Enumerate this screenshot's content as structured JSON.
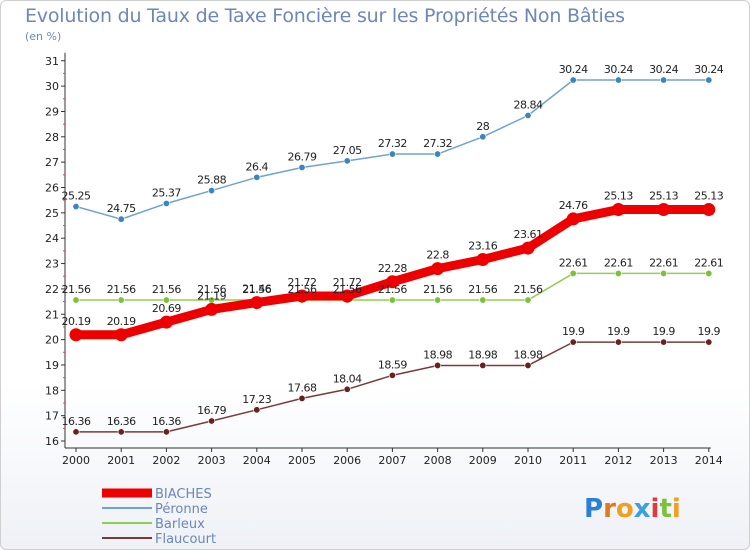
{
  "chart_data": {
    "type": "line",
    "title": "Evolution du Taux de Taxe Foncière sur les Propriétés Non Bâties",
    "unit_label": "(en %)",
    "xlabel": "",
    "ylabel": "",
    "x": [
      "2000",
      "2001",
      "2002",
      "2003",
      "2004",
      "2005",
      "2006",
      "2007",
      "2008",
      "2009",
      "2010",
      "2011",
      "2012",
      "2013",
      "2014"
    ],
    "ylim": [
      16,
      31
    ],
    "yticks": [
      16,
      17,
      18,
      19,
      20,
      21,
      22,
      23,
      24,
      25,
      26,
      27,
      28,
      29,
      30,
      31
    ],
    "grid": false,
    "legend_position": "bottom-left",
    "series": [
      {
        "name": "Péronne",
        "color": "#6ea3cf",
        "marker_color": "#3d85c0",
        "style": "thin",
        "values": [
          25.25,
          24.75,
          25.37,
          25.88,
          26.4,
          26.79,
          27.05,
          27.32,
          27.32,
          28,
          28.84,
          30.24,
          30.24,
          30.24,
          30.24
        ],
        "labels": [
          "25.25",
          "24.75",
          "25.37",
          "25.88",
          "26.4",
          "26.79",
          "27.05",
          "27.32",
          "27.32",
          "28",
          "28.84",
          "30.24",
          "30.24",
          "30.24",
          "30.24"
        ]
      },
      {
        "name": "Barleux",
        "color": "#8fd14f",
        "marker_color": "#7cc13a",
        "style": "thin",
        "values": [
          21.56,
          21.56,
          21.56,
          21.56,
          21.56,
          21.56,
          21.56,
          21.56,
          21.56,
          21.56,
          21.56,
          22.61,
          22.61,
          22.61,
          22.61
        ],
        "labels": [
          "21.56",
          "21.56",
          "21.56",
          "21.56",
          "21.56",
          "21.56",
          "21.56",
          "21.56",
          "21.56",
          "21.56",
          "21.56",
          "22.61",
          "22.61",
          "22.61",
          "22.61"
        ]
      },
      {
        "name": "Flaucourt",
        "color": "#7a3a3a",
        "marker_color": "#6b2020",
        "style": "thin",
        "values": [
          16.36,
          16.36,
          16.36,
          16.79,
          17.23,
          17.68,
          18.04,
          18.59,
          18.98,
          18.98,
          18.98,
          19.9,
          19.9,
          19.9,
          19.9
        ],
        "labels": [
          "16.36",
          "16.36",
          "16.36",
          "16.79",
          "17.23",
          "17.68",
          "18.04",
          "18.59",
          "18.98",
          "18.98",
          "18.98",
          "19.9",
          "19.9",
          "19.9",
          "19.9"
        ]
      },
      {
        "name": "BIACHES",
        "color": "#ee0000",
        "marker_color": "#ee0000",
        "style": "thick",
        "values": [
          20.19,
          20.19,
          20.69,
          21.19,
          21.46,
          21.72,
          21.72,
          22.28,
          22.8,
          23.16,
          23.61,
          24.76,
          25.13,
          25.13,
          25.13
        ],
        "labels": [
          "20.19",
          "20.19",
          "20.69",
          "21.19",
          "21.46",
          "21.72",
          "21.72",
          "22.28",
          "22.8",
          "23.16",
          "23.61",
          "24.76",
          "25.13",
          "25.13",
          "25.13"
        ]
      }
    ],
    "legend_order": [
      "BIACHES",
      "Péronne",
      "Barleux",
      "Flaucourt"
    ]
  },
  "logo": {
    "text": "Proxiti",
    "letters": [
      "P",
      "r",
      "o",
      "x",
      "i",
      "t",
      "i"
    ],
    "letter_colors": [
      "#2b7fd6",
      "#e07a1f",
      "#f0a020",
      "#3aa0e0",
      "#e03a3a",
      "#7cc13a",
      "#f0a020"
    ]
  }
}
